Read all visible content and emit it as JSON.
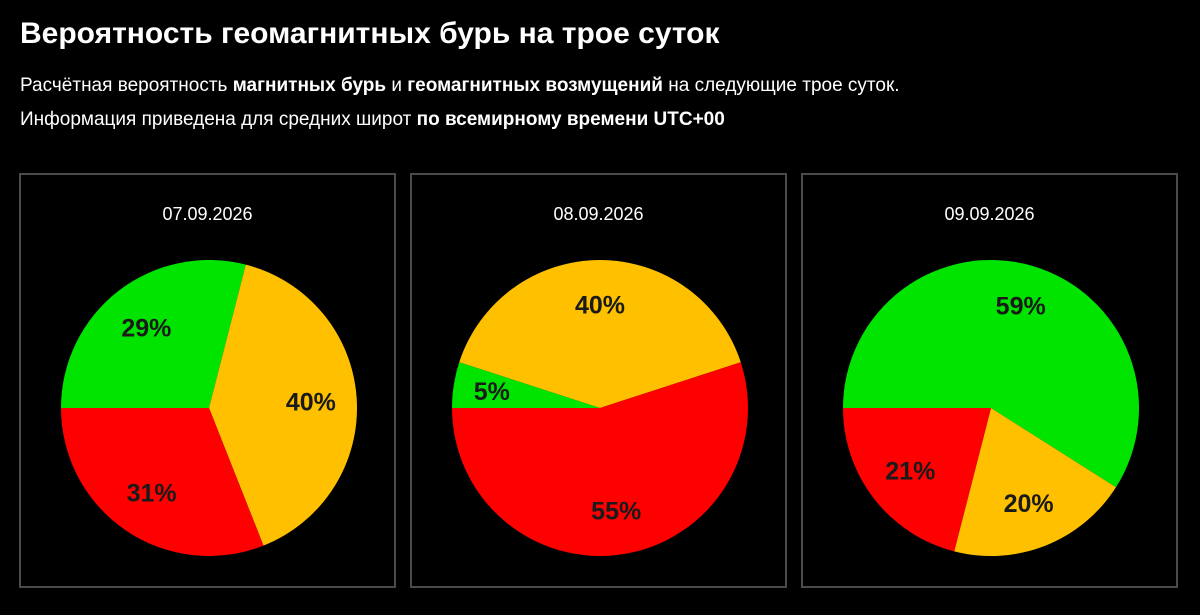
{
  "title": "Вероятность геомагнитных бурь на трое суток",
  "description": {
    "line1": {
      "part1": "Расчётная вероятность ",
      "bold1": "магнитных бурь",
      "part2": " и ",
      "bold2": "геомагнитных возмущений",
      "part3": " на следующие трое суток."
    },
    "line2": {
      "part1": "Информация приведена для средних широт ",
      "bold1": "по всемирному времени UTC+00"
    }
  },
  "colors": {
    "green": "#00E400",
    "yellow": "#FFC000",
    "red": "#FF0000"
  },
  "chart_data": [
    {
      "type": "pie",
      "title": "07.09.2026",
      "slices": [
        {
          "color": "green",
          "value": 29,
          "label": "29%"
        },
        {
          "color": "yellow",
          "value": 40,
          "label": "40%"
        },
        {
          "color": "red",
          "value": 31,
          "label": "31%"
        }
      ]
    },
    {
      "type": "pie",
      "title": "08.09.2026",
      "slices": [
        {
          "color": "green",
          "value": 5,
          "label": "5%"
        },
        {
          "color": "yellow",
          "value": 40,
          "label": "40%"
        },
        {
          "color": "red",
          "value": 55,
          "label": "55%"
        }
      ]
    },
    {
      "type": "pie",
      "title": "09.09.2026",
      "slices": [
        {
          "color": "green",
          "value": 59,
          "label": "59%"
        },
        {
          "color": "yellow",
          "value": 20,
          "label": "20%"
        },
        {
          "color": "red",
          "value": 21,
          "label": "21%"
        }
      ]
    }
  ]
}
